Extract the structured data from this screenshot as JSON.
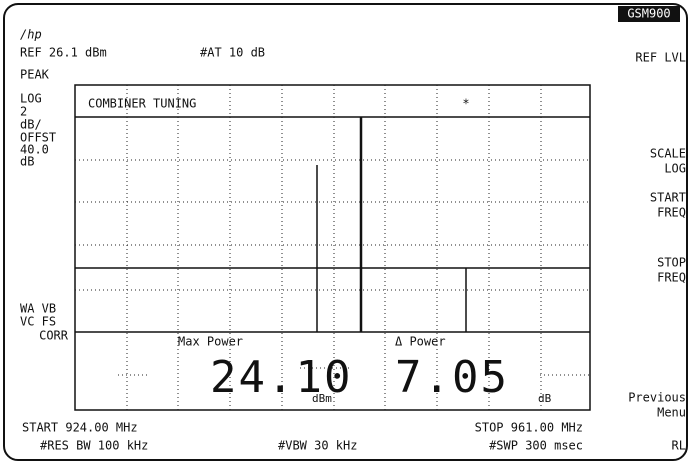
{
  "header": {
    "logo": "/hp",
    "ref": "REF 26.1 dBm",
    "atten": "#AT 10 dB"
  },
  "left_annotations": [
    "PEAK",
    "LOG",
    "2",
    "dB/",
    "OFFST",
    "40.0",
    "dB",
    "WA VB",
    "VC FS",
    "CORR"
  ],
  "screen": {
    "title": "COMBINER TUNING",
    "marker": "*",
    "max_power": {
      "label": "Max Power",
      "value": "24.10",
      "unit": "dBm"
    },
    "delta_power": {
      "label": "Δ Power",
      "value": "7.05",
      "unit": "dB"
    }
  },
  "footer": {
    "start": "START 924.00 MHz",
    "stop": "STOP 961.00 MHz",
    "rbw": "#RES BW 100 kHz",
    "vbw": "#VBW 30 kHz",
    "sweep": "#SWP 300 msec"
  },
  "softkeys": {
    "mode": "GSM900",
    "keys": [
      [
        "REF LVL"
      ],
      [
        "SCALE",
        "LOG"
      ],
      [
        "START",
        "FREQ"
      ],
      [
        "STOP",
        "FREQ"
      ],
      [
        "Previous",
        "Menu"
      ],
      [
        "RL"
      ]
    ]
  }
}
